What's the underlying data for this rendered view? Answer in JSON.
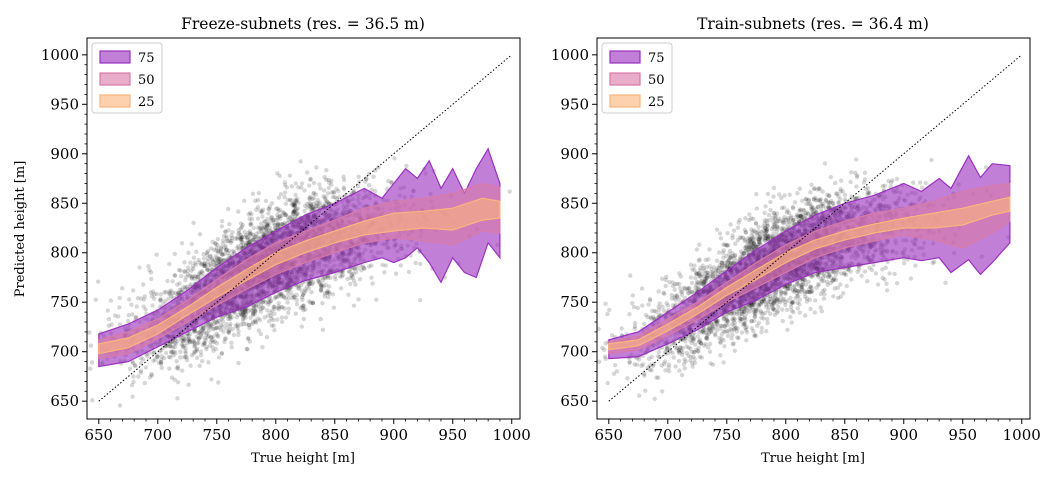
{
  "chart_data": [
    {
      "type": "scatter",
      "title": "Freeze-subnets (res. = 36.5 m)",
      "xlabel": "True height [m]",
      "ylabel": "Predicted height [m]",
      "xlim": [
        640,
        1007
      ],
      "ylim": [
        632,
        1017
      ],
      "xticks": [
        650,
        700,
        750,
        800,
        850,
        900,
        950,
        1000
      ],
      "yticks": [
        650,
        700,
        750,
        800,
        850,
        900,
        950,
        1000
      ],
      "reference_line": {
        "from": [
          650,
          650
        ],
        "to": [
          1000,
          1000
        ],
        "style": "dotted"
      },
      "legend": {
        "placement": "top-left",
        "entries": [
          "75",
          "50",
          "25"
        ]
      },
      "bands": [
        {
          "name": "75",
          "color": "#9b30c0",
          "x": [
            650,
            675,
            700,
            725,
            750,
            775,
            800,
            825,
            850,
            875,
            890,
            900,
            910,
            920,
            930,
            940,
            950,
            960,
            970,
            980,
            990
          ],
          "lower": [
            685,
            690,
            705,
            720,
            735,
            745,
            760,
            772,
            780,
            790,
            795,
            790,
            795,
            805,
            790,
            770,
            795,
            780,
            775,
            810,
            795
          ],
          "upper": [
            718,
            728,
            742,
            762,
            785,
            805,
            822,
            838,
            850,
            865,
            855,
            870,
            885,
            875,
            893,
            865,
            885,
            860,
            885,
            905,
            870
          ]
        },
        {
          "name": "50",
          "color": "#d87aa8",
          "x": [
            650,
            675,
            700,
            725,
            750,
            775,
            800,
            825,
            850,
            875,
            900,
            925,
            950,
            975,
            990
          ],
          "lower": [
            693,
            698,
            713,
            730,
            747,
            763,
            778,
            790,
            800,
            810,
            815,
            812,
            808,
            822,
            820
          ],
          "upper": [
            712,
            720,
            733,
            752,
            773,
            793,
            810,
            822,
            833,
            845,
            852,
            855,
            860,
            870,
            866
          ]
        },
        {
          "name": "25",
          "color": "#fbb57c",
          "x": [
            650,
            675,
            700,
            725,
            750,
            775,
            800,
            825,
            850,
            875,
            900,
            925,
            950,
            975,
            990
          ],
          "lower": [
            698,
            704,
            718,
            737,
            755,
            772,
            788,
            800,
            810,
            818,
            822,
            825,
            823,
            833,
            835
          ],
          "upper": [
            708,
            714,
            727,
            745,
            765,
            783,
            800,
            812,
            822,
            832,
            840,
            842,
            845,
            855,
            852
          ]
        }
      ],
      "scatter_model": {
        "n": 4000,
        "x_center": 790,
        "x_spread": 55,
        "ymid": "band25",
        "y_noise": 26
      }
    },
    {
      "type": "scatter",
      "title": "Train-subnets (res. = 36.4 m)",
      "xlabel": "True height [m]",
      "ylabel": "",
      "xlim": [
        640,
        1007
      ],
      "ylim": [
        632,
        1017
      ],
      "xticks": [
        650,
        700,
        750,
        800,
        850,
        900,
        950,
        1000
      ],
      "yticks": [
        650,
        700,
        750,
        800,
        850,
        900,
        950,
        1000
      ],
      "reference_line": {
        "from": [
          650,
          650
        ],
        "to": [
          1000,
          1000
        ],
        "style": "dotted"
      },
      "legend": {
        "placement": "top-left",
        "entries": [
          "75",
          "50",
          "25"
        ]
      },
      "bands": [
        {
          "name": "75",
          "color": "#9b30c0",
          "x": [
            650,
            675,
            700,
            725,
            750,
            775,
            800,
            825,
            850,
            875,
            900,
            915,
            930,
            940,
            955,
            965,
            975,
            990
          ],
          "lower": [
            693,
            695,
            708,
            722,
            740,
            752,
            768,
            780,
            785,
            790,
            795,
            792,
            795,
            780,
            793,
            778,
            790,
            810
          ],
          "upper": [
            712,
            720,
            740,
            760,
            782,
            803,
            822,
            838,
            850,
            858,
            870,
            862,
            875,
            865,
            898,
            876,
            890,
            888
          ]
        },
        {
          "name": "50",
          "color": "#d87aa8",
          "x": [
            650,
            675,
            700,
            725,
            750,
            775,
            800,
            825,
            850,
            875,
            900,
            925,
            950,
            975,
            990
          ],
          "lower": [
            698,
            702,
            716,
            732,
            750,
            765,
            780,
            795,
            805,
            812,
            818,
            813,
            805,
            820,
            832
          ],
          "upper": [
            710,
            716,
            733,
            750,
            770,
            790,
            808,
            822,
            832,
            840,
            845,
            852,
            862,
            868,
            870
          ]
        },
        {
          "name": "25",
          "color": "#fbb57c",
          "x": [
            650,
            675,
            700,
            725,
            750,
            775,
            800,
            825,
            850,
            875,
            900,
            925,
            950,
            975,
            990
          ],
          "lower": [
            702,
            706,
            721,
            738,
            757,
            773,
            790,
            804,
            813,
            820,
            825,
            825,
            828,
            838,
            842
          ],
          "upper": [
            708,
            712,
            728,
            745,
            765,
            783,
            800,
            813,
            822,
            829,
            835,
            840,
            845,
            852,
            856
          ]
        }
      ],
      "scatter_model": {
        "n": 4000,
        "x_center": 790,
        "x_spread": 55,
        "ymid": "band25",
        "y_noise": 24
      }
    }
  ]
}
